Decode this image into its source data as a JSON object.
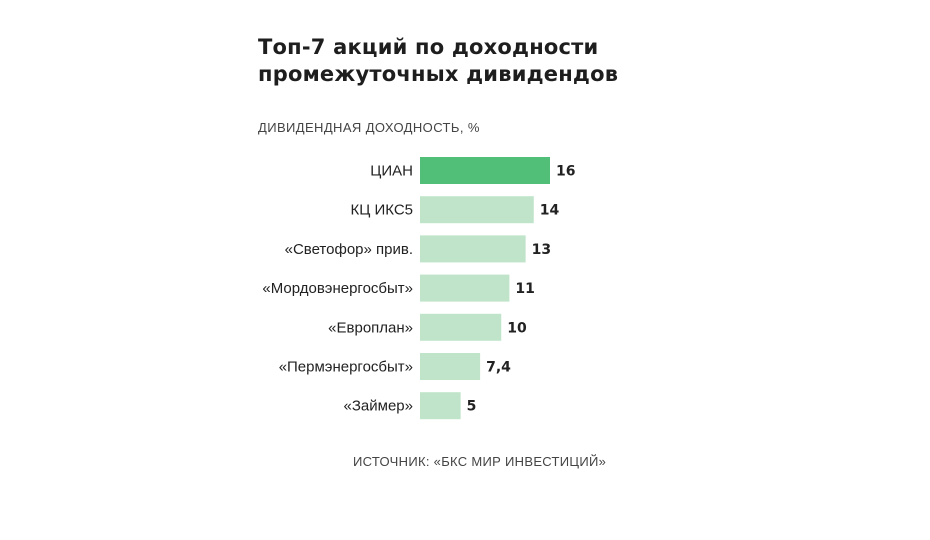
{
  "colors": {
    "highlight": "#52bf78",
    "bar": "#bfe4c9",
    "text": "#222222"
  },
  "chart_data": {
    "type": "bar",
    "orientation": "horizontal",
    "title": "Топ-7 акций по доходности промежуточных дивидендов",
    "ylabel": "ДИВИДЕНДНАЯ ДОХОДНОСТЬ, %",
    "source": "ИСТОЧНИК: «БКС МИР ИНВЕСТИЦИЙ»",
    "categories": [
      "ЦИАН",
      "КЦ ИКС5",
      "«Светофор» прив.",
      "«Мордовэнергосбыт»",
      "«Европлан»",
      "«Пермэнергосбыт»",
      "«Займер»"
    ],
    "values": [
      16,
      14,
      13,
      11,
      10,
      7.4,
      5
    ],
    "value_labels": [
      "16",
      "14",
      "13",
      "11",
      "10",
      "7,4",
      "5"
    ],
    "highlight_index": 0,
    "xlim": [
      0,
      16
    ],
    "grid": false,
    "legend": "none"
  }
}
